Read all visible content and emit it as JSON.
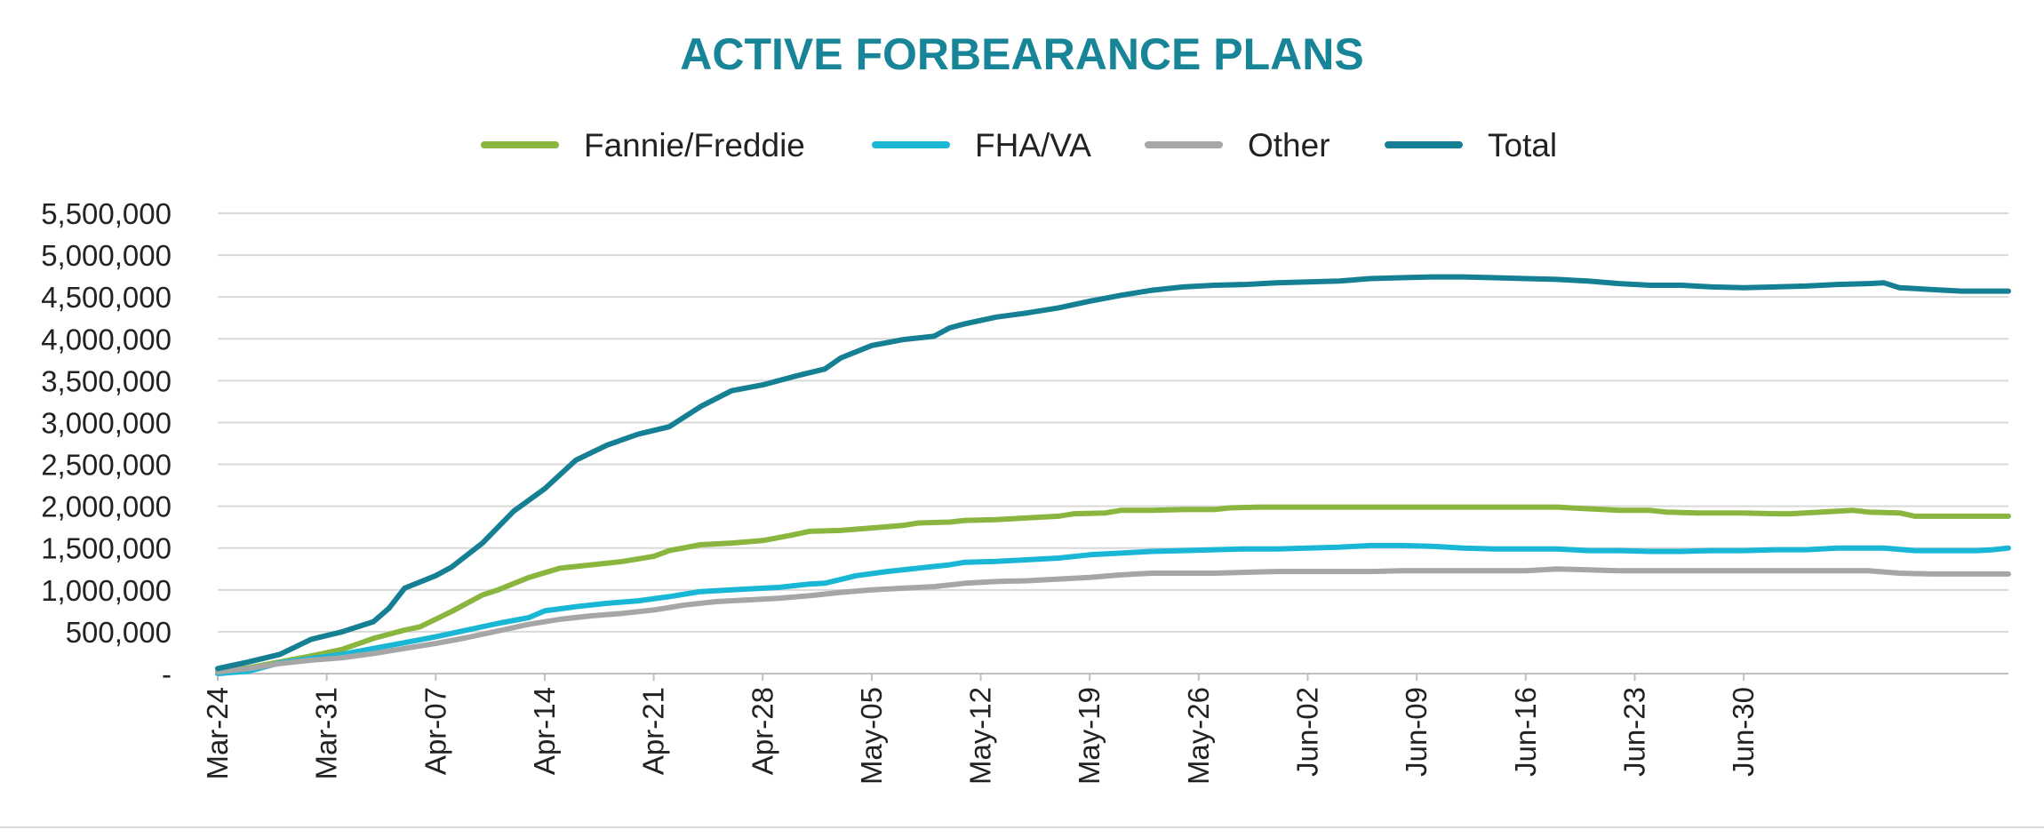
{
  "chart_data": {
    "type": "line",
    "title": "ACTIVE FORBEARANCE PLANS",
    "xlabel": "",
    "ylabel": "",
    "ylim": [
      0,
      5500000
    ],
    "y_ticks": [
      0,
      500000,
      1000000,
      1500000,
      2000000,
      2500000,
      3000000,
      3500000,
      4000000,
      4500000,
      5000000,
      5500000
    ],
    "y_tick_labels": [
      "-",
      "500,000",
      "1,000,000",
      "1,500,000",
      "2,000,000",
      "2,500,000",
      "3,000,000",
      "3,500,000",
      "4,000,000",
      "4,500,000",
      "5,000,000",
      "5,500,000"
    ],
    "x_tick_labels": [
      "Mar-24",
      "Mar-31",
      "Apr-07",
      "Apr-14",
      "Apr-21",
      "Apr-28",
      "May-05",
      "May-12",
      "May-19",
      "May-26",
      "Jun-02",
      "Jun-09",
      "Jun-16",
      "Jun-23",
      "Jun-30"
    ],
    "x_unit": "days since Mar-24",
    "grid": true,
    "legend_position": "top",
    "series": [
      {
        "name": "Fannie/Freddie",
        "color": "#8ab63f",
        "points": [
          [
            0,
            20000
          ],
          [
            2,
            70000
          ],
          [
            4,
            140000
          ],
          [
            6,
            210000
          ],
          [
            8,
            290000
          ],
          [
            10,
            420000
          ],
          [
            12,
            520000
          ],
          [
            13,
            560000
          ],
          [
            15,
            740000
          ],
          [
            17,
            940000
          ],
          [
            18,
            1000000
          ],
          [
            20,
            1150000
          ],
          [
            22,
            1260000
          ],
          [
            24,
            1300000
          ],
          [
            26,
            1340000
          ],
          [
            28,
            1400000
          ],
          [
            29,
            1470000
          ],
          [
            31,
            1540000
          ],
          [
            33,
            1560000
          ],
          [
            35,
            1590000
          ],
          [
            37,
            1660000
          ],
          [
            38,
            1700000
          ],
          [
            40,
            1710000
          ],
          [
            42,
            1740000
          ],
          [
            44,
            1770000
          ],
          [
            45,
            1800000
          ],
          [
            47,
            1810000
          ],
          [
            48,
            1830000
          ],
          [
            50,
            1840000
          ],
          [
            52,
            1860000
          ],
          [
            54,
            1880000
          ],
          [
            55,
            1910000
          ],
          [
            57,
            1920000
          ],
          [
            58,
            1950000
          ],
          [
            60,
            1950000
          ],
          [
            62,
            1960000
          ],
          [
            64,
            1960000
          ],
          [
            65,
            1980000
          ],
          [
            67,
            1990000
          ],
          [
            69,
            1990000
          ],
          [
            71,
            1990000
          ],
          [
            73,
            1990000
          ],
          [
            75,
            1990000
          ],
          [
            77,
            1990000
          ],
          [
            79,
            1990000
          ],
          [
            82,
            1990000
          ],
          [
            84,
            1990000
          ],
          [
            86,
            1990000
          ],
          [
            88,
            1970000
          ],
          [
            90,
            1950000
          ],
          [
            92,
            1950000
          ],
          [
            93,
            1930000
          ],
          [
            95,
            1920000
          ],
          [
            98,
            1920000
          ],
          [
            100,
            1910000
          ],
          [
            101,
            1910000
          ],
          [
            103,
            1930000
          ],
          [
            105,
            1950000
          ],
          [
            106,
            1930000
          ],
          [
            108,
            1920000
          ],
          [
            109,
            1880000
          ],
          [
            111,
            1880000
          ],
          [
            112,
            1880000
          ],
          [
            114,
            1880000
          ],
          [
            115,
            1880000
          ]
        ]
      },
      {
        "name": "FHA/VA",
        "color": "#19b6d6",
        "points": [
          [
            0,
            0
          ],
          [
            2,
            30000
          ],
          [
            4,
            130000
          ],
          [
            6,
            180000
          ],
          [
            8,
            230000
          ],
          [
            10,
            300000
          ],
          [
            12,
            370000
          ],
          [
            14,
            440000
          ],
          [
            16,
            520000
          ],
          [
            18,
            600000
          ],
          [
            20,
            670000
          ],
          [
            21,
            750000
          ],
          [
            23,
            800000
          ],
          [
            25,
            840000
          ],
          [
            27,
            870000
          ],
          [
            29,
            920000
          ],
          [
            31,
            980000
          ],
          [
            33,
            1000000
          ],
          [
            35,
            1020000
          ],
          [
            36,
            1030000
          ],
          [
            38,
            1070000
          ],
          [
            39,
            1080000
          ],
          [
            41,
            1170000
          ],
          [
            43,
            1220000
          ],
          [
            45,
            1260000
          ],
          [
            47,
            1300000
          ],
          [
            48,
            1330000
          ],
          [
            50,
            1340000
          ],
          [
            52,
            1360000
          ],
          [
            54,
            1380000
          ],
          [
            56,
            1420000
          ],
          [
            58,
            1440000
          ],
          [
            60,
            1460000
          ],
          [
            62,
            1470000
          ],
          [
            64,
            1480000
          ],
          [
            66,
            1490000
          ],
          [
            68,
            1490000
          ],
          [
            70,
            1500000
          ],
          [
            72,
            1510000
          ],
          [
            74,
            1530000
          ],
          [
            76,
            1530000
          ],
          [
            78,
            1520000
          ],
          [
            80,
            1500000
          ],
          [
            82,
            1490000
          ],
          [
            84,
            1490000
          ],
          [
            86,
            1490000
          ],
          [
            88,
            1470000
          ],
          [
            90,
            1470000
          ],
          [
            92,
            1460000
          ],
          [
            94,
            1460000
          ],
          [
            96,
            1470000
          ],
          [
            98,
            1470000
          ],
          [
            100,
            1480000
          ],
          [
            102,
            1480000
          ],
          [
            104,
            1500000
          ],
          [
            106,
            1500000
          ],
          [
            107,
            1500000
          ],
          [
            109,
            1470000
          ],
          [
            111,
            1470000
          ],
          [
            113,
            1470000
          ],
          [
            114,
            1480000
          ],
          [
            115,
            1500000
          ]
        ]
      },
      {
        "name": "Other",
        "color": "#a6a6a6",
        "points": [
          [
            0,
            20000
          ],
          [
            2,
            60000
          ],
          [
            4,
            120000
          ],
          [
            6,
            160000
          ],
          [
            8,
            190000
          ],
          [
            10,
            240000
          ],
          [
            12,
            300000
          ],
          [
            14,
            360000
          ],
          [
            16,
            430000
          ],
          [
            18,
            510000
          ],
          [
            20,
            590000
          ],
          [
            22,
            650000
          ],
          [
            24,
            690000
          ],
          [
            26,
            720000
          ],
          [
            28,
            760000
          ],
          [
            30,
            820000
          ],
          [
            32,
            860000
          ],
          [
            34,
            880000
          ],
          [
            36,
            900000
          ],
          [
            38,
            930000
          ],
          [
            40,
            970000
          ],
          [
            42,
            1000000
          ],
          [
            44,
            1020000
          ],
          [
            46,
            1040000
          ],
          [
            48,
            1080000
          ],
          [
            50,
            1100000
          ],
          [
            52,
            1110000
          ],
          [
            54,
            1130000
          ],
          [
            56,
            1150000
          ],
          [
            58,
            1180000
          ],
          [
            60,
            1200000
          ],
          [
            62,
            1200000
          ],
          [
            64,
            1200000
          ],
          [
            66,
            1210000
          ],
          [
            68,
            1220000
          ],
          [
            70,
            1220000
          ],
          [
            72,
            1220000
          ],
          [
            74,
            1220000
          ],
          [
            76,
            1230000
          ],
          [
            78,
            1230000
          ],
          [
            80,
            1230000
          ],
          [
            82,
            1230000
          ],
          [
            84,
            1230000
          ],
          [
            86,
            1250000
          ],
          [
            88,
            1240000
          ],
          [
            90,
            1230000
          ],
          [
            92,
            1230000
          ],
          [
            94,
            1230000
          ],
          [
            96,
            1230000
          ],
          [
            98,
            1230000
          ],
          [
            100,
            1230000
          ],
          [
            102,
            1230000
          ],
          [
            104,
            1230000
          ],
          [
            106,
            1230000
          ],
          [
            108,
            1200000
          ],
          [
            110,
            1190000
          ],
          [
            112,
            1190000
          ],
          [
            115,
            1190000
          ]
        ]
      },
      {
        "name": "Total",
        "color": "#157f93",
        "points": [
          [
            0,
            60000
          ],
          [
            2,
            140000
          ],
          [
            4,
            230000
          ],
          [
            6,
            410000
          ],
          [
            8,
            500000
          ],
          [
            10,
            620000
          ],
          [
            11,
            780000
          ],
          [
            12,
            1020000
          ],
          [
            14,
            1170000
          ],
          [
            15,
            1270000
          ],
          [
            17,
            1560000
          ],
          [
            19,
            1940000
          ],
          [
            21,
            2210000
          ],
          [
            23,
            2550000
          ],
          [
            25,
            2730000
          ],
          [
            27,
            2860000
          ],
          [
            29,
            2950000
          ],
          [
            31,
            3190000
          ],
          [
            33,
            3380000
          ],
          [
            35,
            3450000
          ],
          [
            37,
            3550000
          ],
          [
            39,
            3640000
          ],
          [
            40,
            3770000
          ],
          [
            42,
            3920000
          ],
          [
            44,
            3990000
          ],
          [
            46,
            4030000
          ],
          [
            47,
            4130000
          ],
          [
            48,
            4180000
          ],
          [
            50,
            4260000
          ],
          [
            52,
            4310000
          ],
          [
            54,
            4370000
          ],
          [
            56,
            4450000
          ],
          [
            58,
            4520000
          ],
          [
            60,
            4580000
          ],
          [
            62,
            4620000
          ],
          [
            64,
            4640000
          ],
          [
            66,
            4650000
          ],
          [
            68,
            4670000
          ],
          [
            70,
            4680000
          ],
          [
            72,
            4690000
          ],
          [
            74,
            4720000
          ],
          [
            76,
            4730000
          ],
          [
            78,
            4740000
          ],
          [
            80,
            4740000
          ],
          [
            82,
            4730000
          ],
          [
            84,
            4720000
          ],
          [
            86,
            4710000
          ],
          [
            88,
            4690000
          ],
          [
            90,
            4660000
          ],
          [
            92,
            4640000
          ],
          [
            94,
            4640000
          ],
          [
            96,
            4620000
          ],
          [
            98,
            4610000
          ],
          [
            100,
            4620000
          ],
          [
            102,
            4630000
          ],
          [
            104,
            4650000
          ],
          [
            106,
            4660000
          ],
          [
            107,
            4670000
          ],
          [
            108,
            4610000
          ],
          [
            110,
            4590000
          ],
          [
            112,
            4570000
          ],
          [
            115,
            4570000
          ]
        ]
      }
    ]
  }
}
